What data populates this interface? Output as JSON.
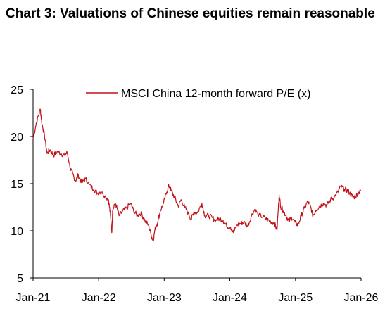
{
  "title": "Chart 3: Valuations of Chinese equities remain reasonable",
  "colors": {
    "series": "#c0141c",
    "axis": "#000000",
    "background": "#ffffff"
  },
  "chart_data": {
    "type": "line",
    "title": "Chart 3: Valuations of Chinese equities remain reasonable",
    "xlabel": "",
    "ylabel": "",
    "ylim": [
      5,
      25
    ],
    "yticks": [
      5,
      10,
      15,
      20,
      25
    ],
    "xlim": [
      "2021-01",
      "2026-01"
    ],
    "xticks": [
      {
        "label": "Jan-21",
        "date": "2021-01"
      },
      {
        "label": "Jan-22",
        "date": "2022-01"
      },
      {
        "label": "Jan-23",
        "date": "2023-01"
      },
      {
        "label": "Jan-24",
        "date": "2024-01"
      },
      {
        "label": "Jan-25",
        "date": "2025-01"
      },
      {
        "label": "Jan-26",
        "date": "2026-01"
      }
    ],
    "grid": false,
    "legend": "top-right",
    "series": [
      {
        "name": "MSCI China 12-month forward P/E (x)",
        "color": "#c0141c",
        "points": [
          [
            "2021-01-01",
            19.8
          ],
          [
            "2021-01-20",
            21.5
          ],
          [
            "2021-02-10",
            22.9
          ],
          [
            "2021-02-20",
            21.3
          ],
          [
            "2021-03-05",
            20.2
          ],
          [
            "2021-03-20",
            18.2
          ],
          [
            "2021-04-05",
            18.6
          ],
          [
            "2021-04-25",
            18.0
          ],
          [
            "2021-05-15",
            18.4
          ],
          [
            "2021-06-05",
            18.2
          ],
          [
            "2021-06-25",
            18.0
          ],
          [
            "2021-07-10",
            18.3
          ],
          [
            "2021-07-28",
            16.6
          ],
          [
            "2021-08-10",
            16.0
          ],
          [
            "2021-08-25",
            15.3
          ],
          [
            "2021-09-10",
            15.9
          ],
          [
            "2021-09-30",
            15.1
          ],
          [
            "2021-10-20",
            15.5
          ],
          [
            "2021-11-10",
            14.9
          ],
          [
            "2021-12-05",
            14.4
          ],
          [
            "2021-12-25",
            14.0
          ],
          [
            "2022-01-15",
            14.2
          ],
          [
            "2022-02-05",
            13.7
          ],
          [
            "2022-02-25",
            13.3
          ],
          [
            "2022-03-08",
            11.6
          ],
          [
            "2022-03-15",
            9.8
          ],
          [
            "2022-03-20",
            12.2
          ],
          [
            "2022-04-05",
            12.9
          ],
          [
            "2022-04-25",
            11.6
          ],
          [
            "2022-05-15",
            12.1
          ],
          [
            "2022-06-05",
            12.4
          ],
          [
            "2022-06-28",
            12.9
          ],
          [
            "2022-07-15",
            12.1
          ],
          [
            "2022-08-05",
            11.6
          ],
          [
            "2022-08-25",
            11.9
          ],
          [
            "2022-09-15",
            11.1
          ],
          [
            "2022-10-05",
            10.6
          ],
          [
            "2022-10-20",
            9.6
          ],
          [
            "2022-10-31",
            8.9
          ],
          [
            "2022-11-10",
            10.1
          ],
          [
            "2022-11-25",
            10.9
          ],
          [
            "2022-12-10",
            12.1
          ],
          [
            "2022-12-28",
            12.9
          ],
          [
            "2023-01-15",
            14.1
          ],
          [
            "2023-01-27",
            14.8
          ],
          [
            "2023-02-10",
            14.2
          ],
          [
            "2023-03-01",
            13.5
          ],
          [
            "2023-03-20",
            12.6
          ],
          [
            "2023-04-05",
            13.3
          ],
          [
            "2023-04-25",
            12.5
          ],
          [
            "2023-05-15",
            11.9
          ],
          [
            "2023-05-31",
            11.2
          ],
          [
            "2023-06-15",
            12.0
          ],
          [
            "2023-07-05",
            11.9
          ],
          [
            "2023-07-30",
            12.9
          ],
          [
            "2023-08-15",
            11.6
          ],
          [
            "2023-09-05",
            11.6
          ],
          [
            "2023-09-25",
            11.4
          ],
          [
            "2023-10-15",
            11.1
          ],
          [
            "2023-11-05",
            11.3
          ],
          [
            "2023-11-25",
            11.1
          ],
          [
            "2023-12-15",
            10.5
          ],
          [
            "2024-01-05",
            10.4
          ],
          [
            "2024-01-22",
            9.8
          ],
          [
            "2024-02-10",
            10.6
          ],
          [
            "2024-03-01",
            10.8
          ],
          [
            "2024-03-20",
            10.9
          ],
          [
            "2024-04-10",
            10.5
          ],
          [
            "2024-05-01",
            11.6
          ],
          [
            "2024-05-20",
            12.3
          ],
          [
            "2024-06-10",
            11.6
          ],
          [
            "2024-07-05",
            11.5
          ],
          [
            "2024-07-25",
            11.2
          ],
          [
            "2024-08-15",
            11.0
          ],
          [
            "2024-09-05",
            10.8
          ],
          [
            "2024-09-20",
            10.1
          ],
          [
            "2024-10-02",
            13.8
          ],
          [
            "2024-10-10",
            12.6
          ],
          [
            "2024-10-25",
            12.1
          ],
          [
            "2024-11-10",
            11.6
          ],
          [
            "2024-11-25",
            11.0
          ],
          [
            "2024-12-10",
            11.4
          ],
          [
            "2024-12-30",
            10.9
          ],
          [
            "2025-01-15",
            10.6
          ],
          [
            "2025-02-01",
            11.6
          ],
          [
            "2025-02-20",
            12.4
          ],
          [
            "2025-03-10",
            13.1
          ],
          [
            "2025-03-25",
            12.6
          ],
          [
            "2025-04-08",
            11.6
          ],
          [
            "2025-04-25",
            12.2
          ],
          [
            "2025-05-15",
            12.6
          ],
          [
            "2025-06-05",
            12.9
          ],
          [
            "2025-06-25",
            12.7
          ],
          [
            "2025-07-15",
            13.3
          ],
          [
            "2025-08-05",
            13.6
          ],
          [
            "2025-08-25",
            14.1
          ],
          [
            "2025-09-10",
            14.7
          ],
          [
            "2025-09-30",
            14.4
          ],
          [
            "2025-10-15",
            14.3
          ],
          [
            "2025-10-30",
            14.0
          ],
          [
            "2025-11-15",
            13.6
          ],
          [
            "2025-12-01",
            13.6
          ],
          [
            "2025-12-20",
            14.1
          ],
          [
            "2025-12-31",
            14.3
          ]
        ]
      }
    ]
  }
}
